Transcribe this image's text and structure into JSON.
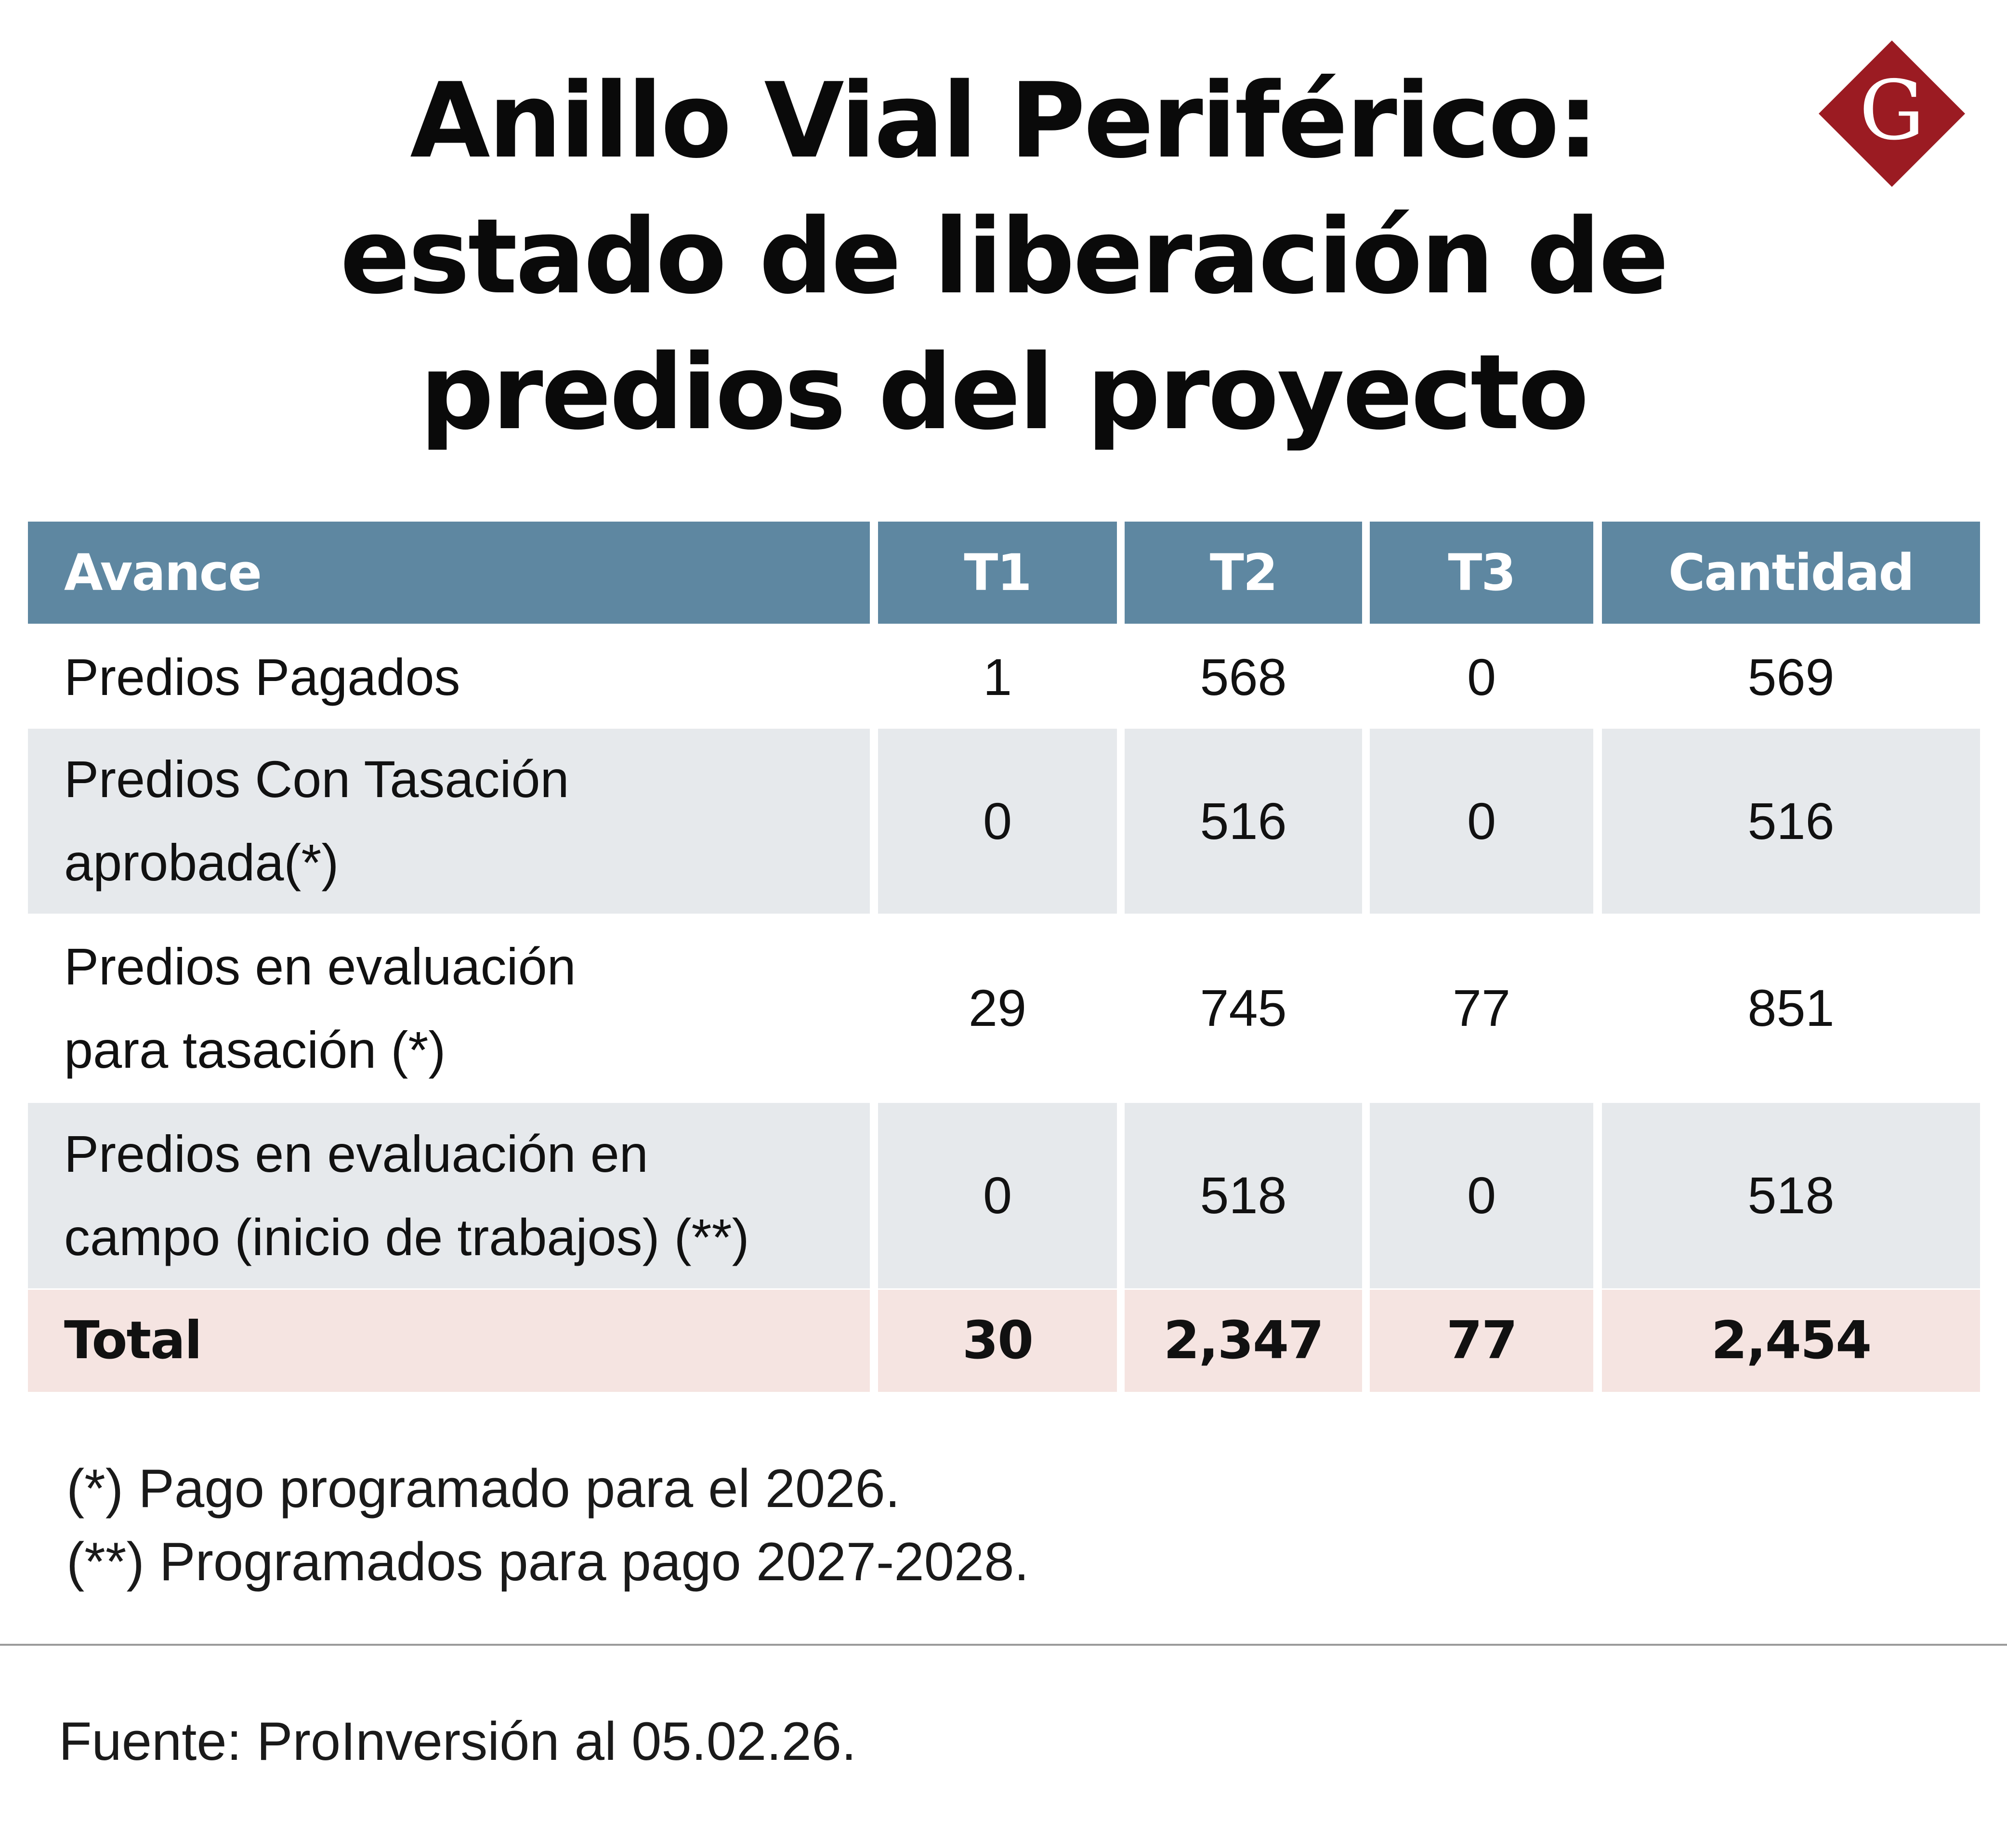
{
  "title_lines": [
    "Anillo Vial Periférico:",
    "estado de liberación de",
    "predios del proyecto"
  ],
  "logo": {
    "letter": "G",
    "icon": "diamond-g-logo",
    "color": "#9b1b22"
  },
  "colors": {
    "header_bg": "#5e87a1",
    "row_alt_bg": "#e6e9ec",
    "total_bg": "#f5e4e1"
  },
  "chart_data": {
    "type": "table",
    "columns": [
      "Avance",
      "T1",
      "T2",
      "T3",
      "Cantidad"
    ],
    "rows": [
      {
        "label": [
          "Predios Pagados"
        ],
        "values": [
          "1",
          "568",
          "0",
          "569"
        ]
      },
      {
        "label": [
          "Predios Con Tasación",
          "aprobada(*)"
        ],
        "values": [
          "0",
          "516",
          "0",
          "516"
        ]
      },
      {
        "label": [
          "Predios en evaluación",
          "para tasación (*)"
        ],
        "values": [
          "29",
          "745",
          "77",
          "851"
        ]
      },
      {
        "label": [
          "Predios en evaluación en",
          "campo (inicio de trabajos) (**)"
        ],
        "values": [
          "0",
          "518",
          "0",
          "518"
        ]
      }
    ],
    "total": {
      "label": "Total",
      "values": [
        "30",
        "2,347",
        "77",
        "2,454"
      ]
    }
  },
  "notes": [
    "(*) Pago programado para el 2026.",
    "(**) Programados para pago 2027-2028."
  ],
  "source": "Fuente: ProInversión al 05.02.26."
}
